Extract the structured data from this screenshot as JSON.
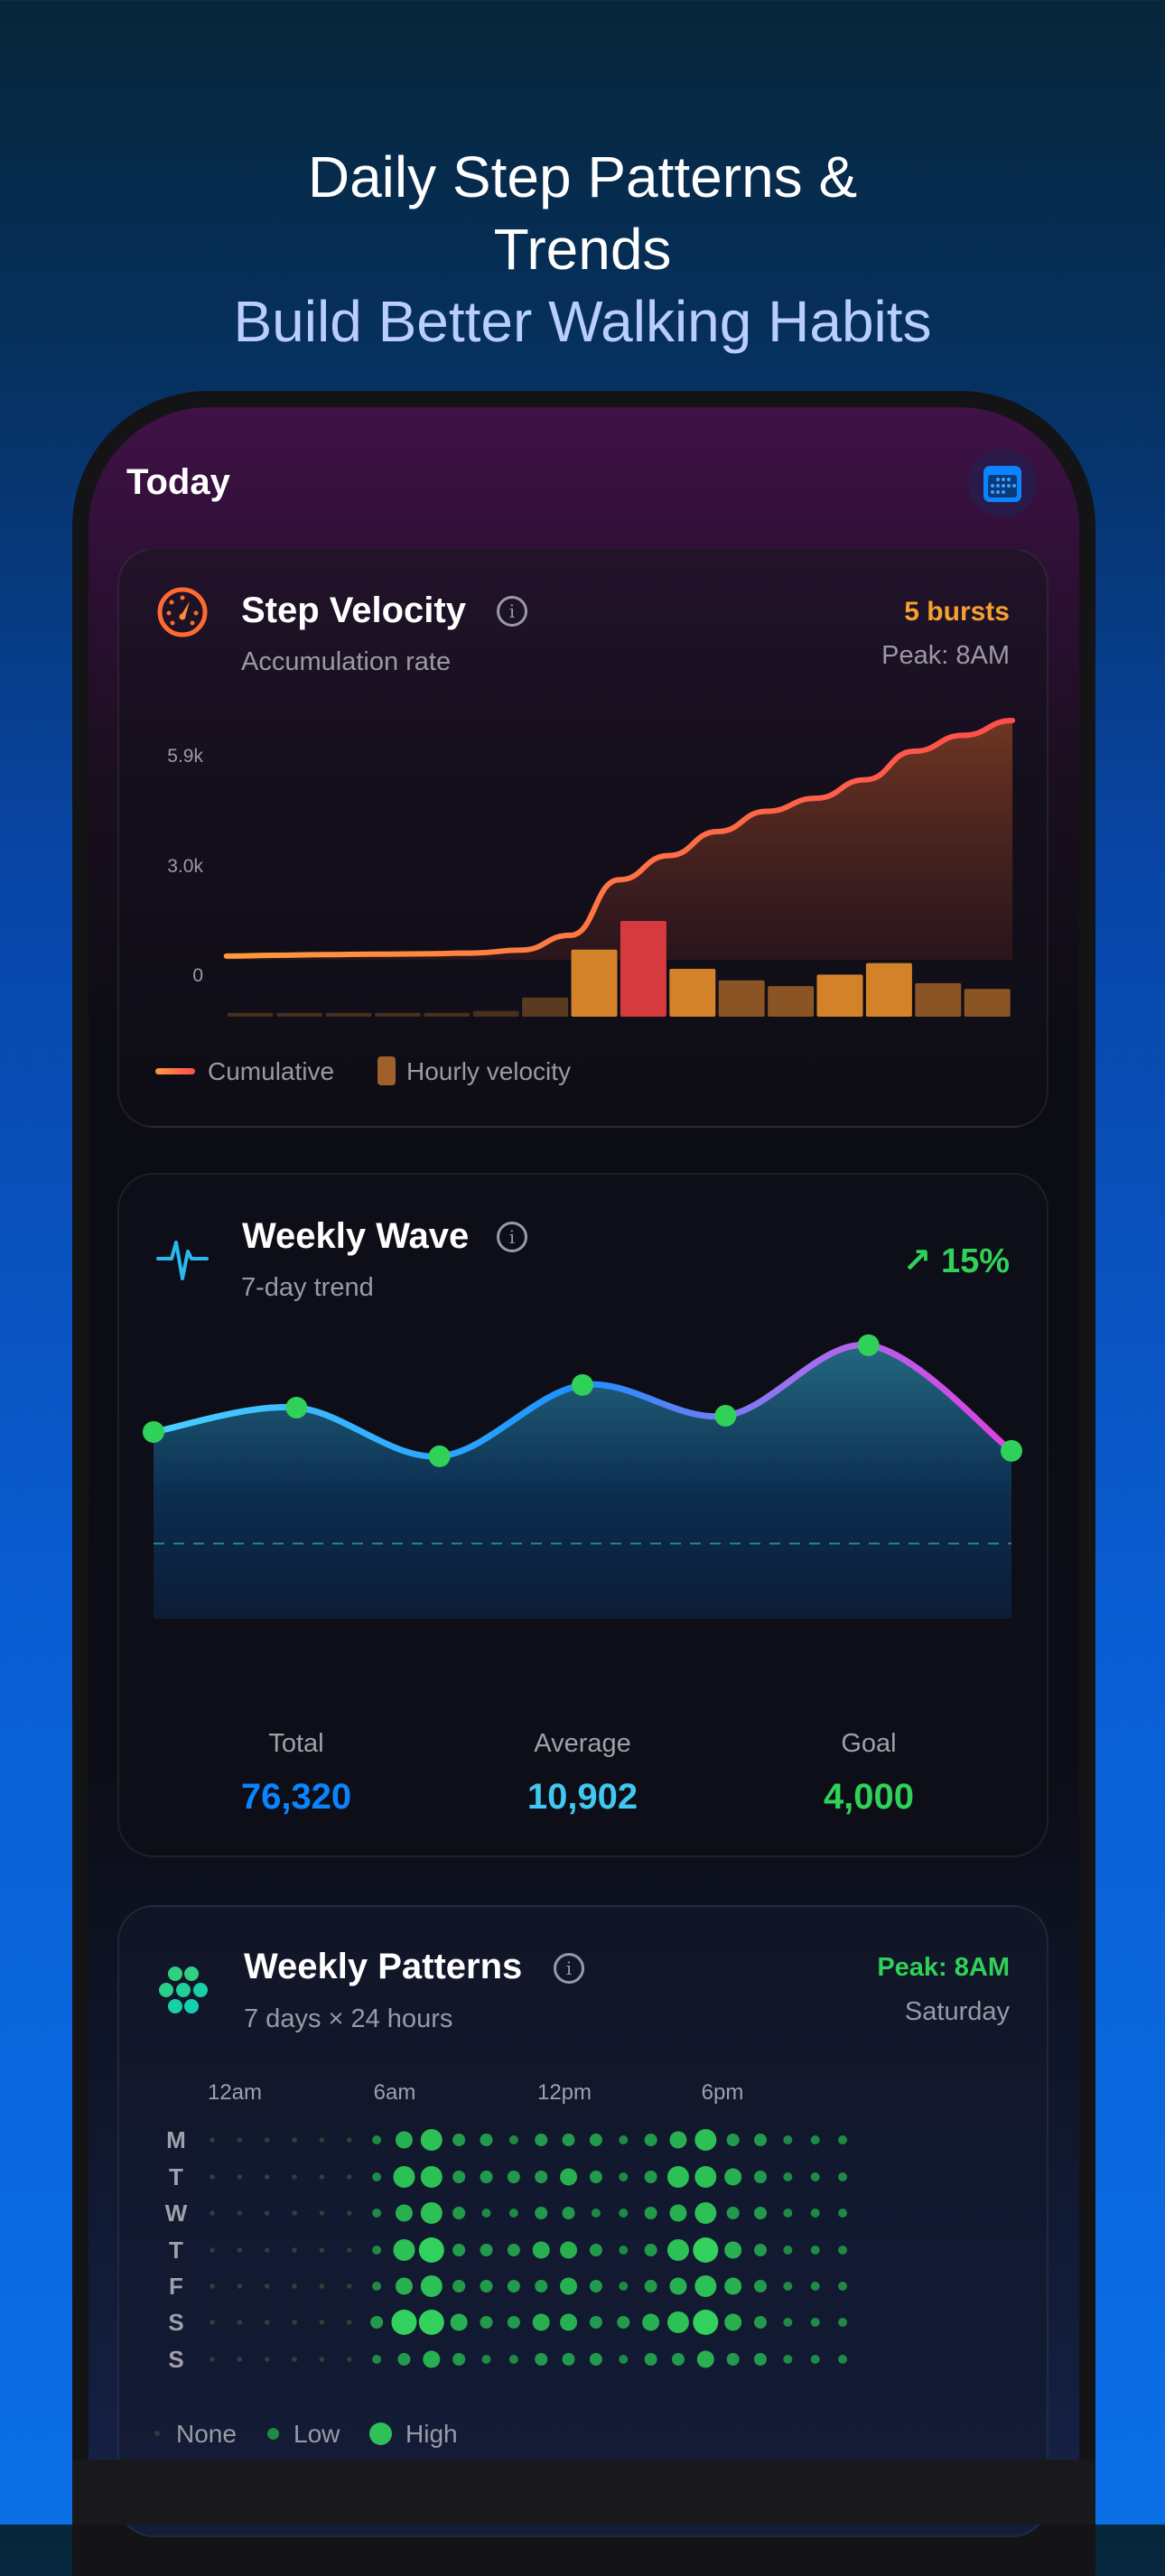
{
  "headline": {
    "line1": "Daily Step Patterns &",
    "line2": "Trends",
    "line3": "Build Better Walking Habits"
  },
  "header": {
    "title": "Today",
    "calendar_icon": "calendar-icon"
  },
  "velocity_card": {
    "icon": "speedometer-icon",
    "title": "Step Velocity",
    "subtitle": "Accumulation rate",
    "badge": "5 bursts",
    "peak": "Peak: 8AM",
    "colors": {
      "accent": "#f5a030",
      "line_start": "#ff8a3a",
      "line_end": "#ff4d4d",
      "peak_bar": "#d63a3e"
    },
    "chart_data": {
      "type": "bar+line",
      "y_ticks": [
        "5.9k",
        "3.0k",
        "0"
      ],
      "cumulative": [
        540,
        560,
        580,
        590,
        600,
        620,
        700,
        1100,
        2600,
        3250,
        3900,
        4450,
        4800,
        5300,
        6070,
        6500,
        6900
      ],
      "hourly_velocity_relative": [
        4,
        4,
        4,
        4,
        4,
        6,
        20,
        70,
        100,
        50,
        38,
        32,
        44,
        56,
        35,
        29
      ],
      "legend": [
        "Cumulative",
        "Hourly velocity"
      ]
    }
  },
  "wave_card": {
    "icon": "pulse-icon",
    "title": "Weekly Wave",
    "subtitle": "7-day trend",
    "trend": "↗ 15%",
    "colors": {
      "trend": "#30d158",
      "total": "#0a84ff",
      "average": "#40c8f0",
      "goal": "#30d158"
    },
    "chart_data": {
      "type": "area",
      "values": [
        9910,
        11200,
        8620,
        12400,
        10770,
        14510,
        8910
      ],
      "goal_line": 4000
    },
    "stats": [
      {
        "label": "Total",
        "value": "76,320"
      },
      {
        "label": "Average",
        "value": "10,902"
      },
      {
        "label": "Goal",
        "value": "4,000"
      }
    ]
  },
  "patterns_card": {
    "icon": "dots-cluster-icon",
    "title": "Weekly Patterns",
    "subtitle": "7 days × 24 hours",
    "peak": "Peak: 8AM",
    "peak_day": "Saturday",
    "hour_labels": [
      "12am",
      "6am",
      "12pm",
      "6pm"
    ],
    "day_labels": [
      "M",
      "T",
      "W",
      "T",
      "F",
      "S",
      "S"
    ],
    "chart_data": {
      "type": "heatmap",
      "levels": [
        [
          0,
          0,
          0,
          0,
          0,
          0,
          1,
          3,
          4,
          2,
          2,
          1,
          2,
          2,
          2,
          1,
          2,
          3,
          4,
          2,
          2,
          1,
          1,
          1
        ],
        [
          0,
          0,
          0,
          0,
          0,
          0,
          1,
          4,
          4,
          2,
          2,
          2,
          2,
          3,
          2,
          1,
          2,
          4,
          4,
          3,
          2,
          1,
          1,
          1
        ],
        [
          0,
          0,
          0,
          0,
          0,
          0,
          1,
          3,
          4,
          2,
          1,
          1,
          2,
          2,
          1,
          1,
          2,
          3,
          4,
          2,
          2,
          1,
          1,
          1
        ],
        [
          0,
          0,
          0,
          0,
          0,
          0,
          1,
          4,
          5,
          2,
          2,
          2,
          3,
          3,
          2,
          1,
          2,
          4,
          5,
          3,
          2,
          1,
          1,
          1
        ],
        [
          0,
          0,
          0,
          0,
          0,
          0,
          1,
          3,
          4,
          2,
          2,
          2,
          2,
          3,
          2,
          1,
          2,
          3,
          4,
          3,
          2,
          1,
          1,
          1
        ],
        [
          0,
          0,
          0,
          0,
          0,
          0,
          2,
          5,
          5,
          3,
          2,
          2,
          3,
          3,
          2,
          2,
          3,
          4,
          5,
          3,
          2,
          1,
          1,
          1
        ],
        [
          0,
          0,
          0,
          0,
          0,
          0,
          1,
          2,
          3,
          2,
          1,
          1,
          2,
          2,
          2,
          1,
          2,
          2,
          3,
          2,
          2,
          1,
          1,
          1
        ]
      ]
    },
    "legend": [
      "None",
      "Low",
      "High"
    ]
  }
}
